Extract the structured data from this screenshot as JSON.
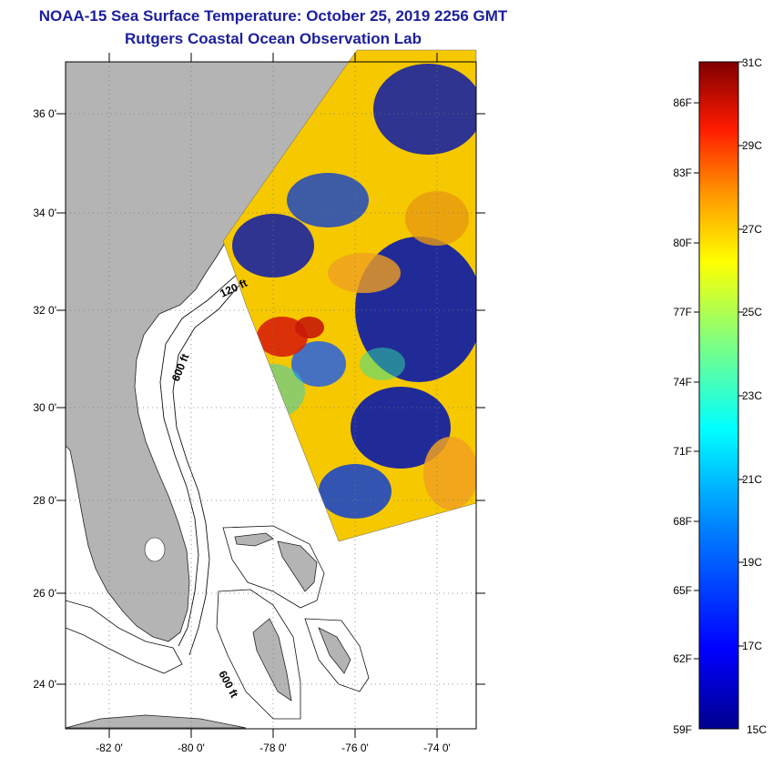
{
  "title": {
    "line1": "NOAA-15 Sea Surface Temperature:  October 25, 2019 2256 GMT",
    "line2": "Rutgers Coastal Ocean Observation Lab"
  },
  "map": {
    "lat_labels": [
      "36 0'",
      "34 0'",
      "32 0'",
      "30 0'",
      "28 0'",
      "26 0'",
      "24 0'"
    ],
    "lon_labels": [
      "-82 0'",
      "-80 0'",
      "-78 0'",
      "-76 0'",
      "-74 0'"
    ],
    "contour_labels": [
      "120 ft",
      "600 ft",
      "600 ft"
    ]
  },
  "colorbar": {
    "celsius_labels": [
      "31C",
      "29C",
      "27C",
      "25C",
      "23C",
      "21C",
      "19C",
      "17C",
      "15C"
    ],
    "fahrenheit_labels": [
      "86F",
      "83F",
      "80F",
      "77F",
      "74F",
      "71F",
      "68F",
      "65F",
      "62F",
      "59F"
    ]
  },
  "colors": {
    "title": "#1c1f9c",
    "land": "#b4b4b4",
    "cold": "#0a1aa8",
    "warm": "#f5c800",
    "hot": "#d8200a"
  }
}
